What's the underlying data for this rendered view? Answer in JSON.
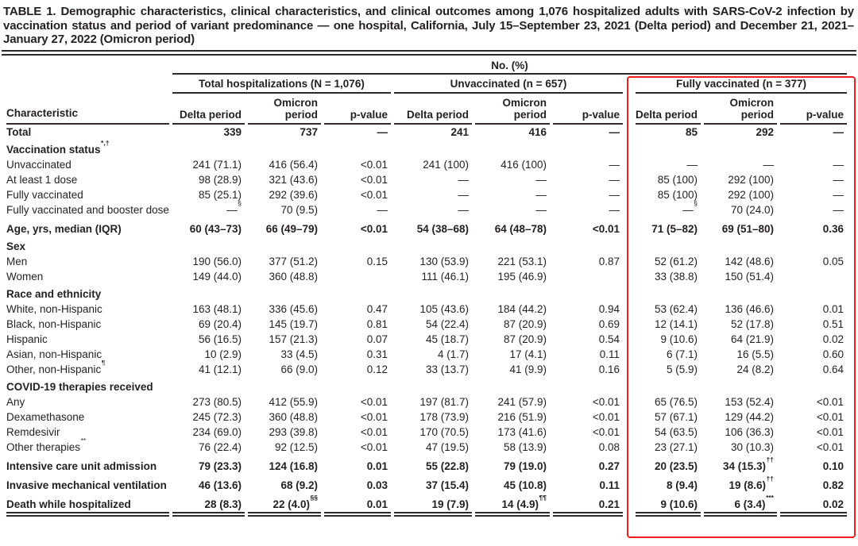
{
  "title": "TABLE 1. Demographic characteristics, clinical characteristics, and clinical outcomes among 1,076 hospitalized adults with SARS-CoV-2 infection by vaccination status and period of variant predominance — one hospital, California, July 15–September 23, 2021 (Delta period) and December 21, 2021–January 27, 2022 (Omicron period)",
  "annotation": {
    "highlight_color": "#f21d1d",
    "highlighted_group": "Fully vaccinated (n = 377)"
  },
  "table": {
    "spanner": "No. (%)",
    "char_header": "Characteristic",
    "groups": [
      {
        "label": "Total hospitalizations (N = 1,076)",
        "cols": [
          "Delta period",
          "Omicron period",
          "p-value"
        ]
      },
      {
        "label": "Unvaccinated (n = 657)",
        "cols": [
          "Delta period",
          "Omicron period",
          "p-value"
        ]
      },
      {
        "label": "Fully vaccinated (n = 377)",
        "cols": [
          "Delta period",
          "Omicron period",
          "p-value"
        ]
      }
    ],
    "rows": [
      {
        "id": "total",
        "label": "Total",
        "bold": true,
        "cells": [
          "339",
          "737",
          "—",
          "241",
          "416",
          "—",
          "85",
          "292",
          "—"
        ]
      },
      {
        "id": "vaccination-status",
        "label": "Vaccination status",
        "label_sup": "*,†",
        "section": true,
        "cells": []
      },
      {
        "id": "unvaccinated",
        "label": "Unvaccinated",
        "cells": [
          "241 (71.1)",
          "416 (56.4)",
          "<0.01",
          "241 (100)",
          "416 (100)",
          "—",
          "—",
          "—",
          "—"
        ]
      },
      {
        "id": "at-least-1-dose",
        "label": "At least 1 dose",
        "cells": [
          "98 (28.9)",
          "321 (43.6)",
          "<0.01",
          "—",
          "—",
          "—",
          "85 (100)",
          "292 (100)",
          "—"
        ]
      },
      {
        "id": "fully-vaccinated",
        "label": "Fully vaccinated",
        "cells": [
          "85 (25.1)",
          "292 (39.6)",
          "<0.01",
          "—",
          "—",
          "—",
          "85 (100)",
          "292 (100)",
          "—"
        ]
      },
      {
        "id": "fully-vaccinated-booster",
        "label": "Fully vaccinated and booster dose",
        "cells": [
          "—^§",
          "70 (9.5)",
          "—",
          "—",
          "—",
          "—",
          "—^§",
          "70 (24.0)",
          "—"
        ]
      },
      {
        "id": "age",
        "label": "Age, yrs, median (IQR)",
        "bold": true,
        "spaced": true,
        "cells": [
          "60 (43–73)",
          "66 (49–79)",
          "<0.01",
          "54 (38–68)",
          "64 (48–78)",
          "<0.01",
          "71 (5–82)",
          "69 (51–80)",
          "0.36"
        ]
      },
      {
        "id": "sex",
        "label": "Sex",
        "section": true,
        "cells": []
      },
      {
        "id": "men",
        "label": "Men",
        "cells": [
          "190 (56.0)",
          "377 (51.2)",
          "0.15",
          "130 (53.9)",
          "221 (53.1)",
          "0.87",
          "52 (61.2)",
          "142 (48.6)",
          "0.05"
        ]
      },
      {
        "id": "women",
        "label": "Women",
        "cells": [
          "149 (44.0)",
          "360 (48.8)",
          "",
          "111 (46.1)",
          "195 (46.9)",
          "",
          "33 (38.8)",
          "150 (51.4)",
          ""
        ]
      },
      {
        "id": "race-and-ethnicity",
        "label": "Race and ethnicity",
        "section": true,
        "cells": []
      },
      {
        "id": "white-non-hispanic",
        "label": "White, non-Hispanic",
        "cells": [
          "163 (48.1)",
          "336 (45.6)",
          "0.47",
          "105 (43.6)",
          "184 (44.2)",
          "0.94",
          "53 (62.4)",
          "136 (46.6)",
          "0.01"
        ]
      },
      {
        "id": "black-non-hispanic",
        "label": "Black, non-Hispanic",
        "cells": [
          "69 (20.4)",
          "145 (19.7)",
          "0.81",
          "54 (22.4)",
          "87 (20.9)",
          "0.69",
          "12 (14.1)",
          "52 (17.8)",
          "0.51"
        ]
      },
      {
        "id": "hispanic",
        "label": "Hispanic",
        "cells": [
          "56 (16.5)",
          "157 (21.3)",
          "0.07",
          "45 (18.7)",
          "87 (20.9)",
          "0.54",
          "9 (10.6)",
          "64 (21.9)",
          "0.02"
        ]
      },
      {
        "id": "asian-non-hispanic",
        "label": "Asian, non-Hispanic",
        "cells": [
          "10 (2.9)",
          "33 (4.5)",
          "0.31",
          "4 (1.7)",
          "17 (4.1)",
          "0.11",
          "6 (7.1)",
          "16 (5.5)",
          "0.60"
        ]
      },
      {
        "id": "other-non-hispanic",
        "label": "Other, non-Hispanic",
        "label_sup": "¶",
        "cells": [
          "41 (12.1)",
          "66 (9.0)",
          "0.12",
          "33 (13.7)",
          "41 (9.9)",
          "0.16",
          "5 (5.9)",
          "24 (8.2)",
          "0.64"
        ]
      },
      {
        "id": "covid-therapies",
        "label": "COVID-19 therapies received",
        "section": true,
        "cells": []
      },
      {
        "id": "any-therapy",
        "label": "Any",
        "cells": [
          "273 (80.5)",
          "412 (55.9)",
          "<0.01",
          "197 (81.7)",
          "241 (57.9)",
          "<0.01",
          "65 (76.5)",
          "153 (52.4)",
          "<0.01"
        ]
      },
      {
        "id": "dexamethasone",
        "label": "Dexamethasone",
        "cells": [
          "245 (72.3)",
          "360 (48.8)",
          "<0.01",
          "178 (73.9)",
          "216 (51.9)",
          "<0.01",
          "57 (67.1)",
          "129 (44.2)",
          "<0.01"
        ]
      },
      {
        "id": "remdesivir",
        "label": "Remdesivir",
        "cells": [
          "234 (69.0)",
          "293 (39.8)",
          "<0.01",
          "170 (70.5)",
          "173 (41.6)",
          "<0.01",
          "54 (63.5)",
          "106 (36.3)",
          "<0.01"
        ]
      },
      {
        "id": "other-therapies",
        "label": "Other therapies",
        "label_sup": "**",
        "cells": [
          "76 (22.4)",
          "92 (12.5)",
          "<0.01",
          "47 (19.5)",
          "58 (13.9)",
          "0.08",
          "23 (27.1)",
          "30 (10.3)",
          "<0.01"
        ]
      },
      {
        "id": "icu-admission",
        "label": "Intensive care unit admission",
        "bold": true,
        "spaced": true,
        "cells": [
          "79 (23.3)",
          "124 (16.8)",
          "0.01",
          "55 (22.8)",
          "79 (19.0)",
          "0.27",
          "20 (23.5)",
          "34 (15.3)^††",
          "0.10"
        ]
      },
      {
        "id": "invasive-mechanical-ventilation",
        "label": "Invasive mechanical ventilation",
        "bold": true,
        "spaced": true,
        "cells": [
          "46 (13.6)",
          "68 (9.2)",
          "0.03",
          "37 (15.4)",
          "45 (10.8)",
          "0.11",
          "8 (9.4)",
          "19 (8.6)^††",
          "0.82"
        ]
      },
      {
        "id": "death-while-hospitalized",
        "label": "Death while hospitalized",
        "bold": true,
        "spaced": true,
        "cells": [
          "28 (8.3)",
          "22 (4.0)^§§",
          "0.01",
          "19 (7.9)",
          "14 (4.9)^¶¶",
          "0.21",
          "9 (10.6)",
          "6 (3.4)^***",
          "0.02"
        ]
      }
    ]
  }
}
